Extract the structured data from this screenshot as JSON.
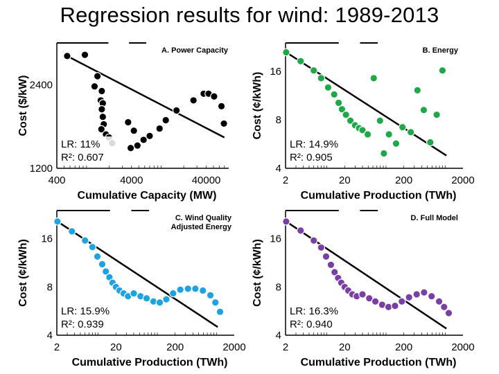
{
  "title": "Regression results for wind: 1989-2013",
  "chart_data": [
    {
      "type": "scatter",
      "panel_title": "A. Power Capacity",
      "xlabel": "Cumulative Capacity (MW)",
      "ylabel": "Cost ($/kW)",
      "x_scale": "log",
      "y_scale": "log",
      "xlim": [
        400,
        80000
      ],
      "ylim": [
        1200,
        3400
      ],
      "x_ticks": [
        400,
        4000,
        40000
      ],
      "x_tick_labels": [
        "400",
        "4000",
        "40000"
      ],
      "y_ticks": [
        1200,
        2400
      ],
      "y_tick_labels": [
        "1200",
        "2400"
      ],
      "stats": [
        "LR: 11%",
        "R²: 0.607"
      ],
      "color": "#000000",
      "points": [
        {
          "x": 550,
          "y": 3050
        },
        {
          "x": 950,
          "y": 3080
        },
        {
          "x": 1400,
          "y": 2580
        },
        {
          "x": 1280,
          "y": 2370
        },
        {
          "x": 1600,
          "y": 2280
        },
        {
          "x": 1550,
          "y": 2110
        },
        {
          "x": 1650,
          "y": 2060
        },
        {
          "x": 1600,
          "y": 1960
        },
        {
          "x": 1650,
          "y": 1840
        },
        {
          "x": 1700,
          "y": 1730
        },
        {
          "x": 1580,
          "y": 1660
        },
        {
          "x": 1820,
          "y": 1590
        },
        {
          "x": 2000,
          "y": 1550
        },
        {
          "x": 2200,
          "y": 1480
        },
        {
          "x": 3600,
          "y": 1760
        },
        {
          "x": 3900,
          "y": 1420
        },
        {
          "x": 4300,
          "y": 1640
        },
        {
          "x": 4800,
          "y": 1450
        },
        {
          "x": 5800,
          "y": 1520
        },
        {
          "x": 7000,
          "y": 1570
        },
        {
          "x": 9500,
          "y": 1670
        },
        {
          "x": 11500,
          "y": 1790
        },
        {
          "x": 16000,
          "y": 1940
        },
        {
          "x": 27000,
          "y": 2110
        },
        {
          "x": 37000,
          "y": 2230
        },
        {
          "x": 43000,
          "y": 2230
        },
        {
          "x": 51000,
          "y": 2180
        },
        {
          "x": 64000,
          "y": 2010
        },
        {
          "x": 69000,
          "y": 1740
        }
      ],
      "fit_line": [
        [
          550,
          3050
        ],
        [
          70000,
          1550
        ]
      ]
    },
    {
      "type": "scatter",
      "panel_title": "B. Energy",
      "xlabel": "Cumulative Production (TWh)",
      "ylabel": "Cost (¢/kWh)",
      "x_scale": "log",
      "y_scale": "log",
      "xlim": [
        2,
        2000
      ],
      "ylim": [
        4,
        24
      ],
      "x_ticks": [
        2,
        20,
        200,
        2000
      ],
      "x_tick_labels": [
        "2",
        "20",
        "200",
        "2000"
      ],
      "y_ticks": [
        4,
        8,
        16
      ],
      "y_tick_labels": [
        "4",
        "8",
        "16"
      ],
      "stats": [
        "LR: 14.9%",
        "R²: 0.905"
      ],
      "color": "#1ea84a",
      "points": [
        {
          "x": 2.05,
          "y": 21
        },
        {
          "x": 3.6,
          "y": 18.5
        },
        {
          "x": 6,
          "y": 16.2
        },
        {
          "x": 8,
          "y": 14.5
        },
        {
          "x": 10.5,
          "y": 12.7
        },
        {
          "x": 13.3,
          "y": 11.5
        },
        {
          "x": 15.8,
          "y": 10.2
        },
        {
          "x": 18,
          "y": 9.3
        },
        {
          "x": 21,
          "y": 8.6
        },
        {
          "x": 25,
          "y": 7.9
        },
        {
          "x": 30,
          "y": 7.4
        },
        {
          "x": 35,
          "y": 7.1
        },
        {
          "x": 40,
          "y": 6.9
        },
        {
          "x": 49,
          "y": 6.5
        },
        {
          "x": 62,
          "y": 14.5
        },
        {
          "x": 79,
          "y": 7.9
        },
        {
          "x": 92,
          "y": 4.95
        },
        {
          "x": 112,
          "y": 6.5
        },
        {
          "x": 148,
          "y": 5.7
        },
        {
          "x": 190,
          "y": 7.2
        },
        {
          "x": 262,
          "y": 6.7
        },
        {
          "x": 340,
          "y": 12.2
        },
        {
          "x": 435,
          "y": 9.2
        },
        {
          "x": 560,
          "y": 5.8
        },
        {
          "x": 720,
          "y": 8.6
        },
        {
          "x": 900,
          "y": 16.2
        }
      ],
      "fit_line": [
        [
          2.05,
          21
        ],
        [
          1050,
          4.8
        ]
      ]
    },
    {
      "type": "scatter",
      "panel_title": "C. Wind Quality Adjusted Energy",
      "xlabel": "Cumulative Production (TWh)",
      "ylabel": "Cost (¢/kWh)",
      "x_scale": "log",
      "y_scale": "log",
      "xlim": [
        2,
        2000
      ],
      "ylim": [
        4,
        24
      ],
      "x_ticks": [
        2,
        20,
        200,
        2000
      ],
      "x_tick_labels": [
        "2",
        "20",
        "200",
        "2000"
      ],
      "y_ticks": [
        4,
        8,
        16
      ],
      "y_tick_labels": [
        "4",
        "8",
        "16"
      ],
      "stats": [
        "LR: 15.9%",
        "R²: 0.939"
      ],
      "color": "#1fa3e0",
      "points": [
        {
          "x": 2.05,
          "y": 20.5
        },
        {
          "x": 3.6,
          "y": 17.8
        },
        {
          "x": 6,
          "y": 15.6
        },
        {
          "x": 8,
          "y": 14.2
        },
        {
          "x": 9.7,
          "y": 12.4
        },
        {
          "x": 11.7,
          "y": 11.1
        },
        {
          "x": 13.5,
          "y": 10
        },
        {
          "x": 15.5,
          "y": 9.2
        },
        {
          "x": 17.5,
          "y": 8.5
        },
        {
          "x": 20,
          "y": 8
        },
        {
          "x": 23,
          "y": 7.6
        },
        {
          "x": 27,
          "y": 7.3
        },
        {
          "x": 32,
          "y": 7
        },
        {
          "x": 40,
          "y": 7.3
        },
        {
          "x": 52,
          "y": 7
        },
        {
          "x": 66,
          "y": 6.8
        },
        {
          "x": 86,
          "y": 6.5
        },
        {
          "x": 110,
          "y": 6.4
        },
        {
          "x": 142,
          "y": 6.7
        },
        {
          "x": 185,
          "y": 7.3
        },
        {
          "x": 245,
          "y": 7.7
        },
        {
          "x": 330,
          "y": 7.8
        },
        {
          "x": 440,
          "y": 7.8
        },
        {
          "x": 590,
          "y": 7.6
        },
        {
          "x": 790,
          "y": 7.1
        },
        {
          "x": 960,
          "y": 6.4
        },
        {
          "x": 1150,
          "y": 5.6
        }
      ],
      "fit_line": [
        [
          2.05,
          20.5
        ],
        [
          1050,
          4.5
        ]
      ]
    },
    {
      "type": "scatter",
      "panel_title": "D. Full Model",
      "xlabel": "Cumulative Production (TWh)",
      "ylabel": "Cost (¢/kWh)",
      "x_scale": "log",
      "y_scale": "log",
      "xlim": [
        2,
        2000
      ],
      "ylim": [
        4,
        24
      ],
      "x_ticks": [
        2,
        20,
        200,
        2000
      ],
      "x_tick_labels": [
        "2",
        "20",
        "200",
        "2000"
      ],
      "y_ticks": [
        4,
        8,
        16
      ],
      "y_tick_labels": [
        "4",
        "8",
        "16"
      ],
      "stats": [
        "LR: 16.3%",
        "R²: 0.940"
      ],
      "color": "#7a3fa5",
      "points": [
        {
          "x": 2.05,
          "y": 20.5
        },
        {
          "x": 3.6,
          "y": 18
        },
        {
          "x": 6,
          "y": 15.6
        },
        {
          "x": 8,
          "y": 14.1
        },
        {
          "x": 9.7,
          "y": 12.4
        },
        {
          "x": 11.7,
          "y": 11
        },
        {
          "x": 13.5,
          "y": 9.9
        },
        {
          "x": 15.5,
          "y": 9.1
        },
        {
          "x": 17.5,
          "y": 8.5
        },
        {
          "x": 20,
          "y": 8
        },
        {
          "x": 23,
          "y": 7.6
        },
        {
          "x": 27,
          "y": 7.2
        },
        {
          "x": 32,
          "y": 7
        },
        {
          "x": 40,
          "y": 7.2
        },
        {
          "x": 52,
          "y": 6.8
        },
        {
          "x": 66,
          "y": 6.5
        },
        {
          "x": 86,
          "y": 6.2
        },
        {
          "x": 110,
          "y": 6
        },
        {
          "x": 142,
          "y": 6.1
        },
        {
          "x": 185,
          "y": 6.5
        },
        {
          "x": 245,
          "y": 6.9
        },
        {
          "x": 330,
          "y": 7.2
        },
        {
          "x": 440,
          "y": 7.4
        },
        {
          "x": 590,
          "y": 7
        },
        {
          "x": 790,
          "y": 6.5
        },
        {
          "x": 960,
          "y": 6
        },
        {
          "x": 1150,
          "y": 5.5
        }
      ],
      "fit_line": [
        [
          2.05,
          20.5
        ],
        [
          1050,
          4.4
        ]
      ]
    }
  ]
}
